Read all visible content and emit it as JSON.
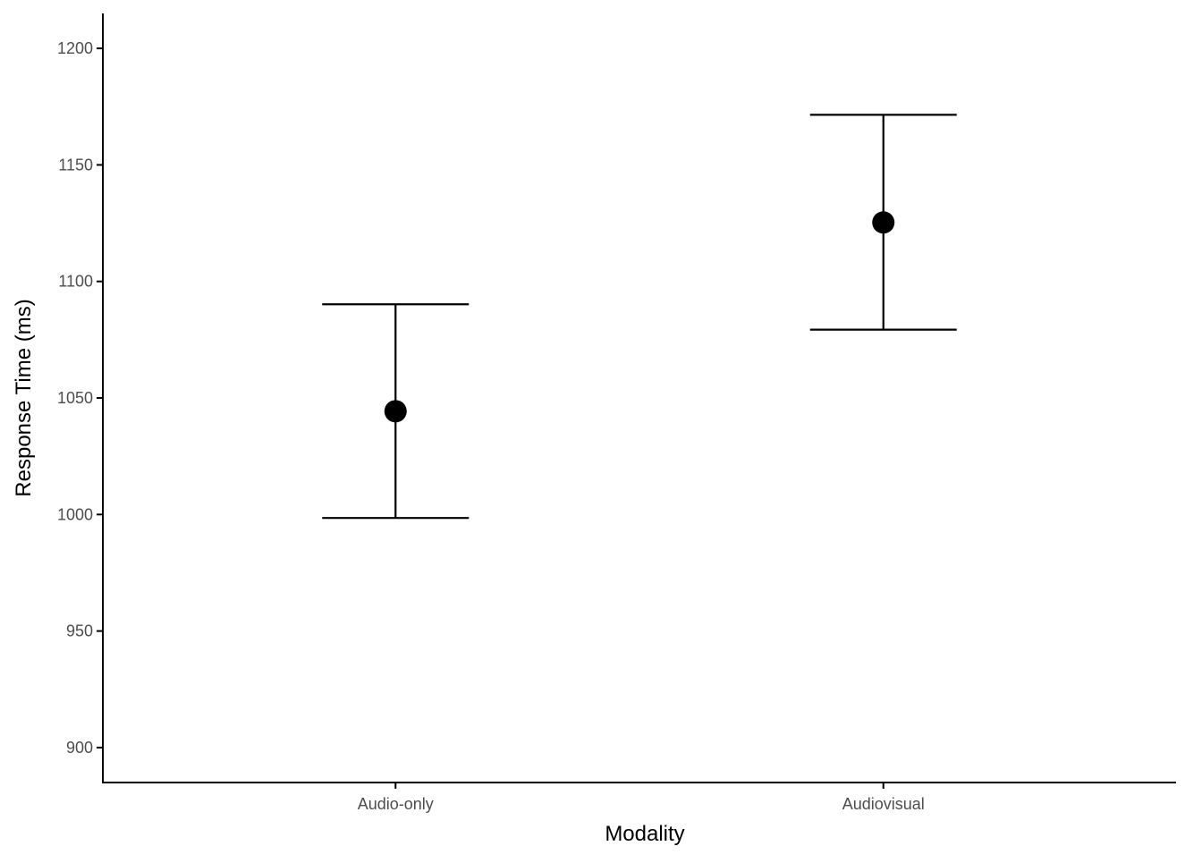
{
  "chart_data": {
    "type": "scatter",
    "title": "",
    "xlabel": "Modality",
    "ylabel": "Response Time (ms)",
    "categories": [
      "Audio-only",
      "Audiovisual"
    ],
    "series": [
      {
        "name": "mean",
        "values": [
          1044.3,
          1125.3
        ],
        "error_lower": [
          998.5,
          1079.3
        ],
        "error_upper": [
          1090.2,
          1171.5
        ]
      }
    ],
    "ylim": [
      885,
      1215
    ],
    "yticks": [
      900,
      950,
      1000,
      1050,
      1100,
      1150,
      1200
    ],
    "ytick_labels": [
      "900",
      "950",
      "1000",
      "1050",
      "1100",
      "1150",
      "1200"
    ],
    "grid": false,
    "legend": "none",
    "colors": {
      "point": "#000000",
      "axis": "#000000",
      "tick_label": "#4d4d4d"
    }
  }
}
